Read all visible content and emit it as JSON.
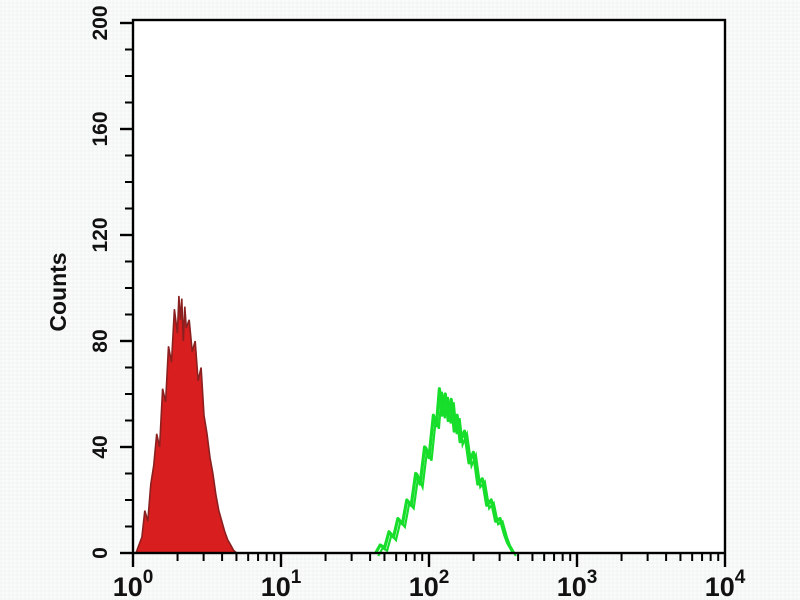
{
  "figure": {
    "background_color": "#fafbfa",
    "plot_background": "#ffffff",
    "frame_color": "#000000"
  },
  "chart_data": {
    "type": "line",
    "subtype": "flow-cytometry-histogram-overlay",
    "title": "",
    "xlabel": "",
    "ylabel": "Counts",
    "x_scale": "log10",
    "x_range_log10": [
      0,
      4
    ],
    "ylim": [
      0,
      200
    ],
    "grid": false,
    "legend_position": "none",
    "y_ticks": [
      0,
      40,
      80,
      120,
      160,
      200
    ],
    "y_minor_step": 10,
    "x_major_ticks": [
      {
        "base": "10",
        "exp": "0",
        "value": 1
      },
      {
        "base": "10",
        "exp": "1",
        "value": 10
      },
      {
        "base": "10",
        "exp": "2",
        "value": 100
      },
      {
        "base": "10",
        "exp": "3",
        "value": 1000
      },
      {
        "base": "10",
        "exp": "4",
        "value": 10000
      }
    ],
    "x_minor_mantissas": [
      2,
      3,
      4,
      5,
      6,
      7,
      8,
      9
    ],
    "series": [
      {
        "name": "red-peak",
        "color": "#d81e1e",
        "outline": "#8b2020",
        "fill": true,
        "stroke_width": 1.6,
        "peak_x": 2.0,
        "peak_counts": 97,
        "points_log10x_counts": [
          [
            0.02,
            0
          ],
          [
            0.04,
            3
          ],
          [
            0.06,
            6
          ],
          [
            0.08,
            16
          ],
          [
            0.1,
            12
          ],
          [
            0.12,
            26
          ],
          [
            0.14,
            33
          ],
          [
            0.16,
            45
          ],
          [
            0.18,
            40
          ],
          [
            0.2,
            62
          ],
          [
            0.22,
            57
          ],
          [
            0.24,
            78
          ],
          [
            0.26,
            72
          ],
          [
            0.28,
            92
          ],
          [
            0.3,
            83
          ],
          [
            0.31,
            97
          ],
          [
            0.32,
            88
          ],
          [
            0.33,
            96
          ],
          [
            0.34,
            80
          ],
          [
            0.35,
            93
          ],
          [
            0.36,
            85
          ],
          [
            0.38,
            88
          ],
          [
            0.4,
            76
          ],
          [
            0.42,
            80
          ],
          [
            0.44,
            65
          ],
          [
            0.46,
            70
          ],
          [
            0.48,
            52
          ],
          [
            0.5,
            45
          ],
          [
            0.52,
            36
          ],
          [
            0.54,
            30
          ],
          [
            0.56,
            22
          ],
          [
            0.58,
            16
          ],
          [
            0.6,
            12
          ],
          [
            0.62,
            8
          ],
          [
            0.64,
            5
          ],
          [
            0.66,
            3
          ],
          [
            0.68,
            1
          ],
          [
            0.7,
            0
          ]
        ]
      },
      {
        "name": "green-peak",
        "color": "#17dd2b",
        "outline": "#17dd2b",
        "fill": false,
        "stroke_width": 3.2,
        "band": true,
        "peak_x": 117,
        "peak_counts": 62,
        "points_log10x_counts": [
          [
            1.64,
            0
          ],
          [
            1.67,
            3
          ],
          [
            1.7,
            2
          ],
          [
            1.73,
            8
          ],
          [
            1.76,
            6
          ],
          [
            1.79,
            13
          ],
          [
            1.82,
            11
          ],
          [
            1.85,
            20
          ],
          [
            1.88,
            18
          ],
          [
            1.91,
            30
          ],
          [
            1.94,
            26
          ],
          [
            1.97,
            40
          ],
          [
            2.0,
            36
          ],
          [
            2.03,
            52
          ],
          [
            2.05,
            48
          ],
          [
            2.07,
            62
          ],
          [
            2.09,
            52
          ],
          [
            2.11,
            60
          ],
          [
            2.13,
            50
          ],
          [
            2.15,
            58
          ],
          [
            2.17,
            46
          ],
          [
            2.19,
            52
          ],
          [
            2.21,
            42
          ],
          [
            2.24,
            46
          ],
          [
            2.27,
            34
          ],
          [
            2.3,
            38
          ],
          [
            2.33,
            26
          ],
          [
            2.36,
            28
          ],
          [
            2.39,
            18
          ],
          [
            2.42,
            20
          ],
          [
            2.45,
            12
          ],
          [
            2.48,
            13
          ],
          [
            2.51,
            7
          ],
          [
            2.53,
            4
          ],
          [
            2.55,
            2
          ],
          [
            2.57,
            0
          ]
        ]
      }
    ]
  }
}
